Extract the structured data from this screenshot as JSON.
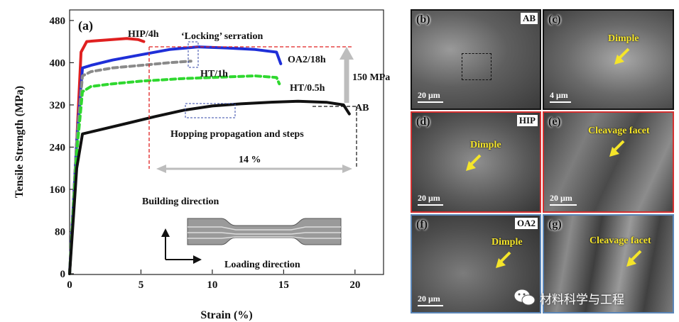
{
  "figure": {
    "panel_label": "(a)",
    "annotations": {
      "locking": "‘Locking’ serration",
      "hopping": "Hopping propagation and steps",
      "delta_strength": "150 MPa",
      "delta_strain": "14 %",
      "building_direction": "Building direction",
      "loading_direction": "Loading direction"
    },
    "colors": {
      "HIP/4h": "#e02020",
      "OA2/18h": "#1f2fd8",
      "HT/1h": "#8a8a8a",
      "HT/0.5h": "#2fd82f",
      "AB": "#111111"
    }
  },
  "chart_data": {
    "type": "line",
    "title": "",
    "xlabel": "Strain (%)",
    "ylabel": "Tensile Strength (MPa)",
    "xlim": [
      0,
      22
    ],
    "ylim": [
      0,
      500
    ],
    "xticks": [
      0,
      5,
      10,
      15,
      20
    ],
    "yticks": [
      0,
      80,
      160,
      240,
      320,
      400,
      480
    ],
    "grid": false,
    "series": [
      {
        "name": "HIP/4h",
        "style": "solid",
        "x": [
          0,
          0.5,
          0.8,
          1.2,
          2,
          3,
          4,
          4.8,
          5.2
        ],
        "y": [
          0,
          250,
          420,
          440,
          442,
          444,
          446,
          444,
          440
        ]
      },
      {
        "name": "OA2/18h",
        "style": "solid",
        "x": [
          0,
          0.5,
          0.9,
          1.5,
          3,
          5,
          7,
          9,
          11,
          13,
          14.5,
          14.8
        ],
        "y": [
          0,
          250,
          390,
          395,
          405,
          415,
          425,
          430,
          428,
          425,
          420,
          398
        ]
      },
      {
        "name": "HT/1h",
        "style": "dashed",
        "x": [
          0,
          0.5,
          0.9,
          1.5,
          3,
          5,
          7,
          8.5
        ],
        "y": [
          0,
          250,
          375,
          383,
          390,
          395,
          400,
          403
        ]
      },
      {
        "name": "HT/0.5h",
        "style": "dashed",
        "x": [
          0,
          0.5,
          0.9,
          1.5,
          3,
          5,
          8,
          11,
          13,
          14.5,
          14.7
        ],
        "y": [
          0,
          230,
          345,
          355,
          360,
          365,
          370,
          373,
          375,
          372,
          360
        ]
      },
      {
        "name": "AB",
        "style": "solid",
        "x": [
          0,
          0.5,
          0.9,
          2,
          4,
          6,
          8,
          10,
          12,
          14,
          16,
          18,
          19.2,
          19.6
        ],
        "y": [
          0,
          200,
          265,
          272,
          285,
          298,
          310,
          318,
          322,
          325,
          327,
          325,
          320,
          303
        ]
      }
    ]
  },
  "micrographs": [
    {
      "label": "(b)",
      "tag": "AB",
      "scale": "20 μm",
      "annotation": "",
      "border": "#111111"
    },
    {
      "label": "(c)",
      "tag": "",
      "scale": "4 μm",
      "annotation": "Dimple",
      "border": "#111111"
    },
    {
      "label": "(d)",
      "tag": "HIP",
      "scale": "20 μm",
      "annotation": "Dimple",
      "border": "#d43030"
    },
    {
      "label": "(e)",
      "tag": "",
      "scale": "20 μm",
      "annotation": "Cleavage facet",
      "border": "#d43030"
    },
    {
      "label": "(f)",
      "tag": "OA2",
      "scale": "20 μm",
      "annotation": "Dimple",
      "border": "#5b86b8"
    },
    {
      "label": "(g)",
      "tag": "",
      "scale": "",
      "annotation": "Cleavage facet",
      "border": "#5b86b8"
    }
  ],
  "watermark": "材料科学与工程"
}
